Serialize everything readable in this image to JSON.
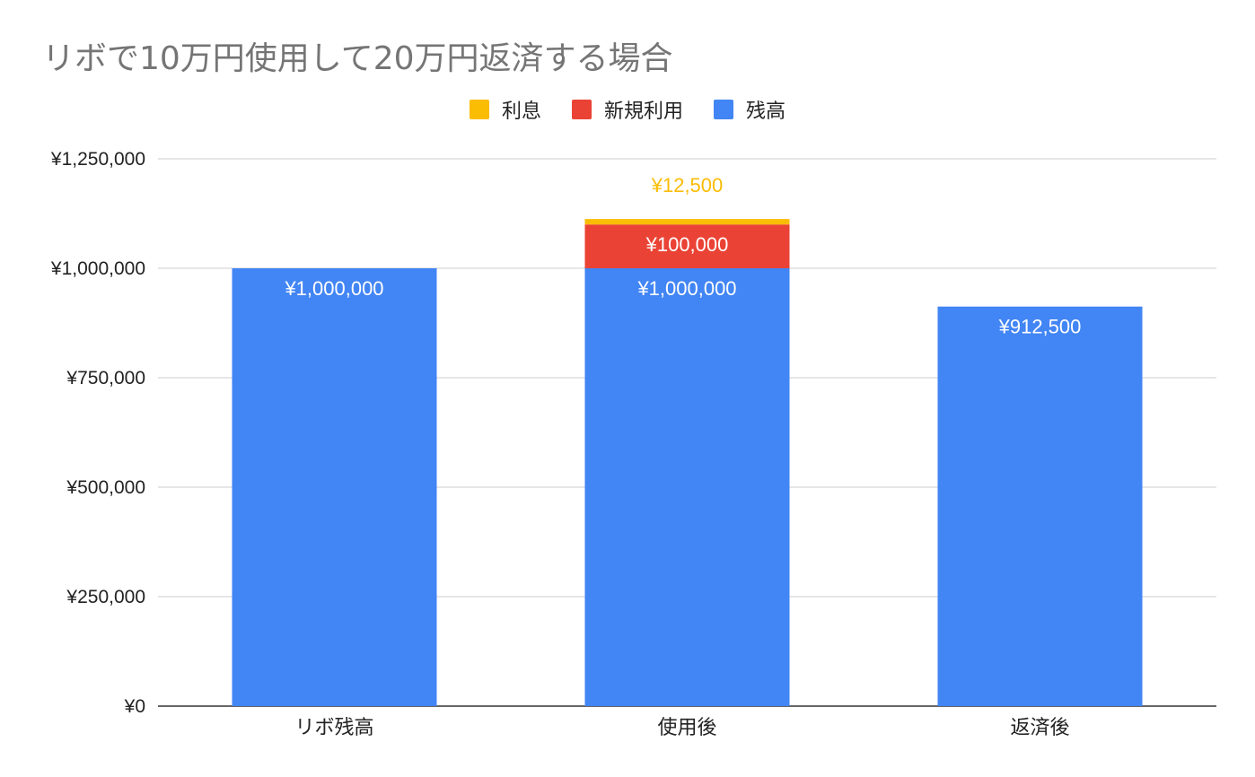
{
  "chart_data": {
    "type": "bar",
    "stacked": true,
    "title": "リボで10万円使用して20万円返済する場合",
    "categories": [
      "リボ残高",
      "使用後",
      "返済後"
    ],
    "series": [
      {
        "name": "残高",
        "color": "#4285F4",
        "values": [
          1000000,
          1000000,
          912500
        ],
        "labels": [
          "¥1,000,000",
          "¥1,000,000",
          "¥912,500"
        ],
        "label_color": "#ffffff"
      },
      {
        "name": "新規利用",
        "color": "#EA4335",
        "values": [
          0,
          100000,
          0
        ],
        "labels": [
          "",
          "¥100,000",
          ""
        ],
        "label_color": "#ffffff"
      },
      {
        "name": "利息",
        "color": "#FBBC04",
        "values": [
          0,
          12500,
          0
        ],
        "labels": [
          "",
          "¥12,500",
          ""
        ],
        "label_color": "#FBBC04"
      }
    ],
    "legend_order": [
      "利息",
      "新規利用",
      "残高"
    ],
    "legend_position": "top-center",
    "ylim": [
      0,
      1250000
    ],
    "yticks": [
      0,
      250000,
      500000,
      750000,
      1000000,
      1250000
    ],
    "ytick_labels": [
      "¥0",
      "¥250,000",
      "¥500,000",
      "¥750,000",
      "¥1,000,000",
      "¥1,250,000"
    ],
    "grid": true,
    "xlabel": "",
    "ylabel": ""
  }
}
